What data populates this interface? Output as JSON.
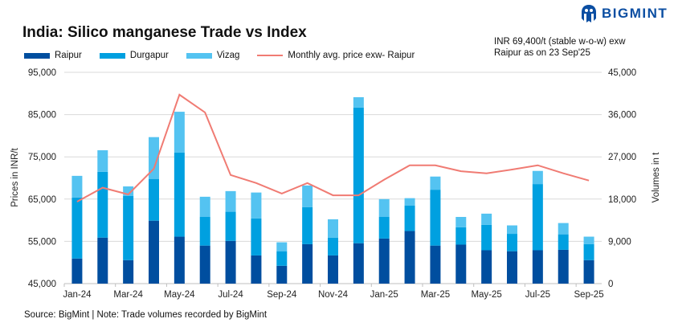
{
  "header": {
    "title": "India: Silico manganese Trade vs Index",
    "brand": "BIGMINT",
    "note_line1": "INR 69,400/t (stable w-o-w) exw",
    "note_line2": "Raipur as on 23 Sep'25"
  },
  "footer": {
    "source": "Source: BigMint | Note: Trade volumes recorded by BigMint"
  },
  "chart_data": {
    "type": "bar",
    "stacked": true,
    "categories": [
      "Jan-24",
      "Feb-24",
      "Mar-24",
      "Apr-24",
      "May-24",
      "Jun-24",
      "Jul-24",
      "Aug-24",
      "Sep-24",
      "Oct-24",
      "Nov-24",
      "Dec-24",
      "Jan-25",
      "Feb-25",
      "Mar-25",
      "Apr-25",
      "May-25",
      "Jun-25",
      "Jul-25",
      "Aug-25",
      "Sep-25"
    ],
    "tick_labels": [
      "Jan-24",
      "Mar-24",
      "May-24",
      "Jul-24",
      "Sep-24",
      "Nov-24",
      "Jan-25",
      "Mar-25",
      "May-25",
      "Jul-25",
      "Sep-25"
    ],
    "series": [
      {
        "name": "Raipur",
        "type": "bar",
        "axis": "right",
        "color": "#004e9f",
        "values": [
          5350,
          9800,
          5000,
          13400,
          10000,
          8100,
          9100,
          6000,
          3800,
          8400,
          6000,
          8600,
          9600,
          11200,
          8100,
          8300,
          7100,
          6900,
          7100,
          7200,
          5000
        ]
      },
      {
        "name": "Durgapur",
        "type": "bar",
        "axis": "right",
        "color": "#00a0e0",
        "values": [
          13000,
          14000,
          13700,
          8900,
          17900,
          6100,
          6200,
          7900,
          3100,
          7900,
          3800,
          28900,
          4600,
          5400,
          11900,
          3700,
          5400,
          3700,
          14100,
          3300,
          3400
        ]
      },
      {
        "name": "Vizag",
        "type": "bar",
        "axis": "right",
        "color": "#54c3f1",
        "values": [
          4600,
          4600,
          2000,
          8900,
          8700,
          4300,
          4400,
          5500,
          1900,
          4600,
          3900,
          2200,
          3800,
          1600,
          2800,
          2200,
          2400,
          1800,
          2800,
          2400,
          1600
        ]
      },
      {
        "name": "Monthly avg. price exw- Raipur",
        "type": "line",
        "axis": "left",
        "color": "#f07b73",
        "values": [
          64400,
          67700,
          66100,
          72200,
          89700,
          85500,
          70700,
          68800,
          66300,
          68800,
          65900,
          65900,
          69600,
          73000,
          73000,
          71600,
          71100,
          72000,
          73000,
          71100,
          69400
        ]
      }
    ],
    "ylabel": "Prices in INR/t",
    "ylim": [
      45000,
      95000
    ],
    "yticks": [
      "45,000",
      "55,000",
      "65,000",
      "75,000",
      "85,000",
      "95,000"
    ],
    "y2label": "Volumes in t",
    "y2lim": [
      0,
      45000
    ],
    "y2ticks": [
      "0",
      "9,000",
      "18,000",
      "27,000",
      "36,000",
      "45,000"
    ],
    "grid": true,
    "legend": "top"
  }
}
